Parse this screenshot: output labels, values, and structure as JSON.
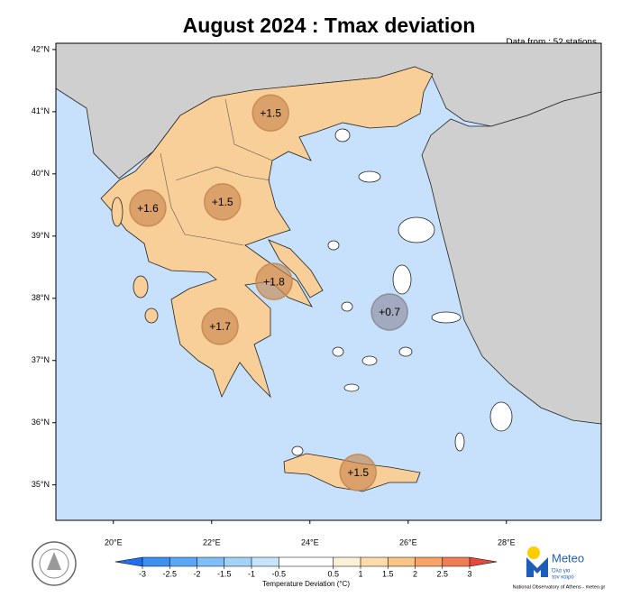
{
  "map": {
    "title": "August 2024 : Tmax deviation",
    "subtitle": "Data from : 52 stations",
    "xlim": [
      18.83,
      29.93
    ],
    "ylim": [
      34.43,
      42.1
    ],
    "xticks": [
      {
        "value": 20,
        "label": "20°E"
      },
      {
        "value": 22,
        "label": "22°E"
      },
      {
        "value": 24,
        "label": "24°E"
      },
      {
        "value": 26,
        "label": "26°E"
      },
      {
        "value": 28,
        "label": "28°E"
      }
    ],
    "yticks": [
      {
        "value": 35,
        "label": "35°N"
      },
      {
        "value": 36,
        "label": "36°N"
      },
      {
        "value": 37,
        "label": "37°N"
      },
      {
        "value": 38,
        "label": "38°N"
      },
      {
        "value": 39,
        "label": "39°N"
      },
      {
        "value": 40,
        "label": "40°N"
      },
      {
        "value": 41,
        "label": "41°N"
      },
      {
        "value": 42,
        "label": "42°N"
      }
    ],
    "stations": [
      {
        "lon": 23.2,
        "lat": 40.98,
        "value": 1.5,
        "label": "+1.5",
        "color": "#c98b52"
      },
      {
        "lon": 20.7,
        "lat": 39.45,
        "value": 1.6,
        "label": "+1.6",
        "color": "#c98b52"
      },
      {
        "lon": 22.22,
        "lat": 39.55,
        "value": 1.5,
        "label": "+1.5",
        "color": "#c98b52"
      },
      {
        "lon": 23.27,
        "lat": 38.27,
        "value": 1.8,
        "label": "+1.8",
        "color": "#c98b52"
      },
      {
        "lon": 22.17,
        "lat": 37.55,
        "value": 1.7,
        "label": "+1.7",
        "color": "#c98b52"
      },
      {
        "lon": 25.62,
        "lat": 37.78,
        "value": 0.7,
        "label": "+0.7",
        "color": "#8e8e9c"
      },
      {
        "lon": 24.98,
        "lat": 35.2,
        "value": 1.5,
        "label": "+1.5",
        "color": "#c98b52"
      }
    ],
    "colorbar": {
      "label": "Temperature Deviation (°C)",
      "ticks": [
        -3,
        -2.5,
        -2,
        -1.5,
        -1,
        -0.5,
        0.5,
        1,
        1.5,
        2,
        2.5,
        3
      ],
      "colors": [
        "#3d8ff0",
        "#5ca7f5",
        "#80bef7",
        "#a3d2f9",
        "#c6e5fa",
        "#ffffff",
        "#fdf0d8",
        "#fcdcab",
        "#f9c486",
        "#f6a468",
        "#f17d55"
      ],
      "extend_colors": [
        "#1f6ff0",
        "#e8483c"
      ]
    },
    "logo": {
      "name": "Meteo",
      "tagline": [
        "Όλα για",
        "τον καιρό"
      ],
      "footer": "National Observatory of Athens - meteo.gr"
    }
  }
}
